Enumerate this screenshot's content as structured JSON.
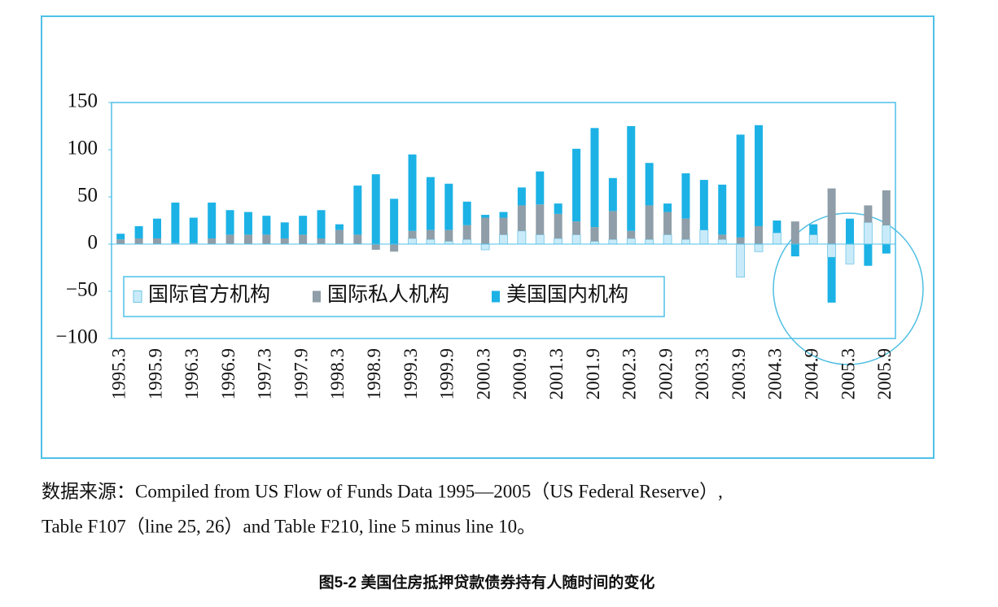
{
  "chart_data": {
    "type": "stacked_bar",
    "categories": [
      "1995.3",
      null,
      "1995.9",
      null,
      "1996.3",
      null,
      "1996.9",
      null,
      "1997.3",
      null,
      "1997.9",
      null,
      "1998.3",
      null,
      "1998.9",
      null,
      "1999.3",
      null,
      "1999.9",
      null,
      "2000.3",
      null,
      "2000.9",
      null,
      "2001.3",
      null,
      "2001.9",
      null,
      "2002.3",
      null,
      "2002.9",
      null,
      "2003.3",
      null,
      "2003.9",
      null,
      "2004.3",
      null,
      "2004.9",
      null,
      "2005.3",
      null,
      "2005.9"
    ],
    "series": [
      {
        "name": "国际官方机构",
        "color": "#c9ebf9",
        "values": [
          0,
          0,
          0,
          0,
          0,
          0,
          0,
          0,
          0,
          0,
          0,
          0,
          0,
          0,
          0,
          0,
          6,
          5,
          3,
          5,
          -6,
          10,
          14,
          10,
          6,
          10,
          3,
          5,
          6,
          5,
          10,
          5,
          15,
          5,
          -35,
          -8,
          12,
          0,
          10,
          -14,
          -21,
          23,
          20
        ]
      },
      {
        "name": "国际私人机构",
        "color": "#8f9ea8",
        "values": [
          5,
          6,
          6,
          1,
          1,
          6,
          10,
          10,
          10,
          6,
          10,
          6,
          15,
          10,
          -6,
          -8,
          8,
          10,
          12,
          15,
          28,
          18,
          27,
          32,
          26,
          14,
          15,
          30,
          8,
          36,
          24,
          22,
          0,
          5,
          7,
          19,
          0,
          24,
          0,
          59,
          0,
          18,
          37
        ]
      },
      {
        "name": "美国国内机构",
        "color": "#1cb2e6",
        "values": [
          6,
          13,
          21,
          43,
          27,
          38,
          26,
          24,
          20,
          17,
          20,
          30,
          6,
          52,
          74,
          48,
          81,
          56,
          49,
          25,
          3,
          6,
          19,
          35,
          11,
          77,
          105,
          35,
          111,
          45,
          9,
          48,
          53,
          53,
          109,
          107,
          13,
          -13,
          11,
          -48,
          27,
          -23,
          -10
        ]
      }
    ],
    "ylim": [
      -100,
      150
    ],
    "yticks": [
      {
        "value": -100,
        "label": "−100"
      },
      {
        "value": -50,
        "label": "−50"
      },
      0,
      50,
      100,
      150
    ],
    "legend": "lower left",
    "source": [
      "数据来源：Compiled from US Flow of Funds Data 1995—2005（US Federal Reserve）,",
      "Table F107（line 25, 26）and Table F210, line 5 minus line 10。"
    ],
    "caption": "图5-2 美国住房抵押贷款债券持有人随时间的变化"
  }
}
